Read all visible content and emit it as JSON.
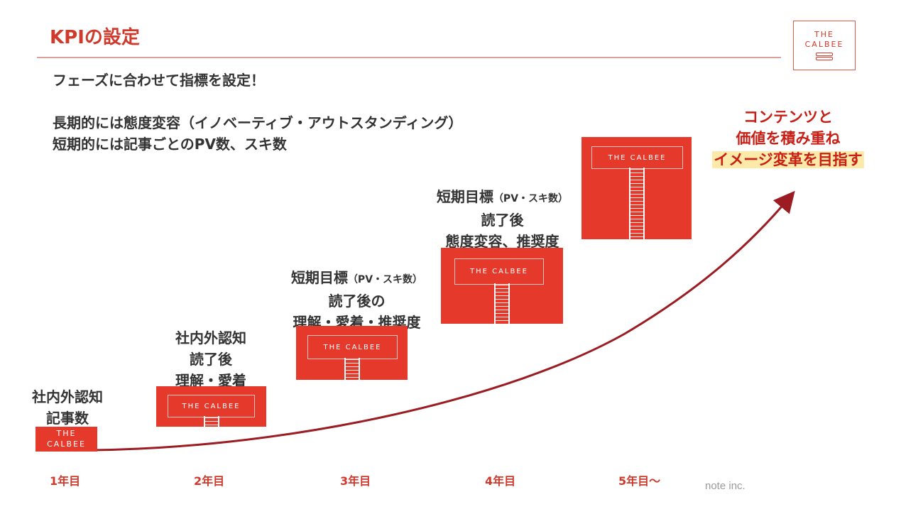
{
  "header": {
    "title": "KPIの設定",
    "logo_line1": "THE",
    "logo_line2": "CALBEE"
  },
  "intro": {
    "line1": "フェーズに合わせて指標を設定！",
    "line2": "長期的には態度変容（イノベーティブ・アウトスタンディング）",
    "line3": "短期的には記事ごとのPV数、スキ数"
  },
  "phases": [
    {
      "year": "1年目",
      "lines": [
        "社内外認知",
        "記事数"
      ],
      "card_text_1": "THE",
      "card_text_2": "CALBEE"
    },
    {
      "year": "2年目",
      "lines": [
        "社内外認知",
        "読了後",
        "理解・愛着"
      ],
      "card_text": "THE CALBEE"
    },
    {
      "year": "3年目",
      "line1_main": "短期目標",
      "line1_sub": "（PV・スキ数）",
      "lines": [
        "読了後の",
        "理解・愛着・推奨度"
      ],
      "card_text": "THE CALBEE"
    },
    {
      "year": "4年目",
      "line1_main": "短期目標",
      "line1_sub": "（PV・スキ数）",
      "lines": [
        "読了後",
        "態度変容、推奨度"
      ],
      "card_text": "THE CALBEE"
    },
    {
      "year": "5年目～",
      "card_text": "THE CALBEE"
    }
  ],
  "goal": {
    "line1": "コンテンツと",
    "line2": "価値を積み重ね",
    "line3": "イメージ変革を目指す"
  },
  "footer": {
    "note": "note inc."
  },
  "colors": {
    "accent": "#d03a2c",
    "card": "#e4392b",
    "curve": "#9b1c22",
    "highlight": "#fdeaa8"
  }
}
